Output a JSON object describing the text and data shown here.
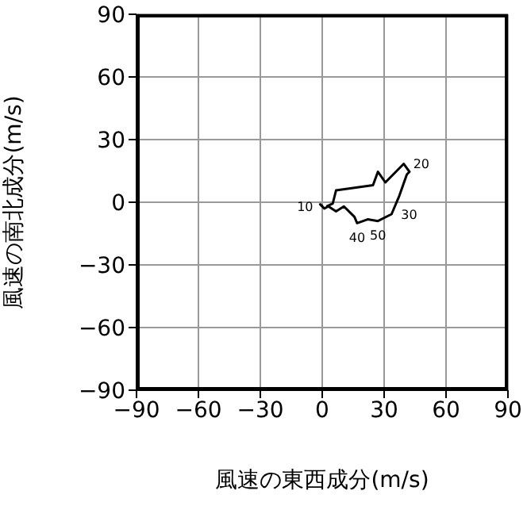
{
  "chart_data": {
    "type": "line",
    "xlabel": "風速の東西成分(m/s)",
    "ylabel": "風速の南北成分(m/s)",
    "x": [
      0.2,
      -1,
      1,
      3,
      6.7,
      10.5,
      15.6,
      16.9,
      22,
      27,
      33.6,
      37.4,
      41,
      42.3,
      39.5,
      30.6,
      27,
      24.6,
      6.7,
      5.1,
      2
    ],
    "series": [
      {
        "color": "#000000",
        "values": [
          -2,
          -1,
          -3,
          -2,
          -4.4,
          -2,
          -7,
          -10,
          -8.2,
          -9,
          -5.7,
          3.2,
          13.3,
          14.6,
          18.4,
          9.5,
          14.6,
          8.2,
          5.7,
          -0.6,
          -2
        ]
      }
    ],
    "annotations": [
      {
        "text": "20",
        "x": 39.5,
        "y": 18.4
      },
      {
        "text": "30",
        "x": 33.6,
        "y": -5.7
      },
      {
        "text": "50",
        "x": 27,
        "y": -9
      },
      {
        "text": "40",
        "x": 16.9,
        "y": -10
      },
      {
        "text": "10",
        "x": 0.2,
        "y": -2
      }
    ],
    "xlim": [
      -90,
      90
    ],
    "ylim": [
      -90,
      90
    ],
    "xticks": [
      {
        "value": -90,
        "label": "−90"
      },
      {
        "value": -60,
        "label": "−60"
      },
      {
        "value": -30,
        "label": "−30"
      },
      0,
      30,
      60,
      90
    ],
    "yticks": [
      {
        "value": -90,
        "label": "−90"
      },
      {
        "value": -60,
        "label": "−60"
      },
      {
        "value": -30,
        "label": "−30"
      },
      0,
      30,
      60,
      90
    ],
    "grid": true,
    "marker": "none",
    "line_style": "solid"
  }
}
